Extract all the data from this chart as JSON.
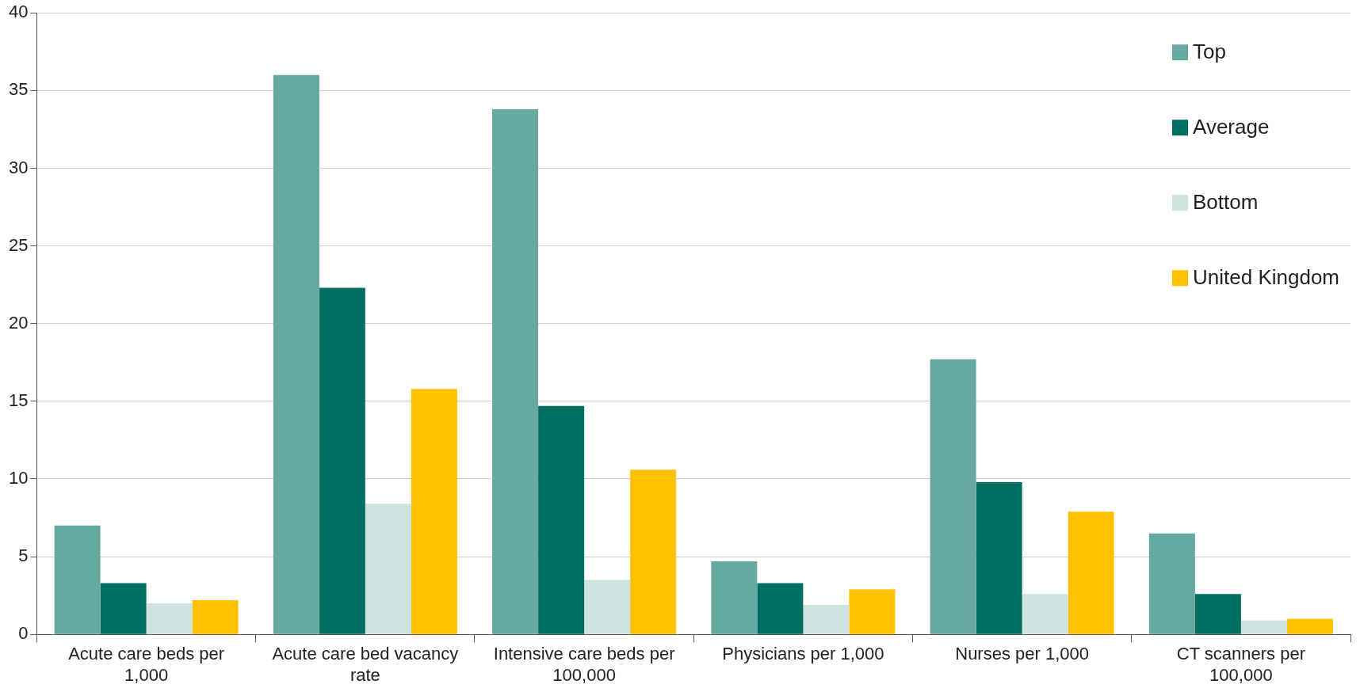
{
  "chart_data": {
    "type": "bar",
    "categories": [
      "Acute care beds per 1,000",
      "Acute care bed vacancy rate",
      "Intensive care beds per 100,000",
      "Physicians per 1,000",
      "Nurses per 1,000",
      "CT scanners per 100,000"
    ],
    "series": [
      {
        "name": "Top",
        "color": "#66a9a0",
        "values": [
          7.0,
          36.0,
          33.8,
          4.7,
          17.7,
          6.5
        ]
      },
      {
        "name": "Average",
        "color": "#006e61",
        "values": [
          3.3,
          22.3,
          14.7,
          3.3,
          9.8,
          2.6
        ]
      },
      {
        "name": "Bottom",
        "color": "#cce3df",
        "values": [
          2.0,
          8.4,
          3.5,
          1.9,
          2.6,
          0.9
        ]
      },
      {
        "name": "United Kingdom",
        "color": "#ffc000",
        "values": [
          2.2,
          15.8,
          10.6,
          2.9,
          7.9,
          1.0
        ]
      }
    ],
    "ylim": [
      0,
      40
    ],
    "yticks": [
      0,
      5,
      10,
      15,
      20,
      25,
      30,
      35,
      40
    ],
    "grid": "y",
    "legend": "top right"
  }
}
